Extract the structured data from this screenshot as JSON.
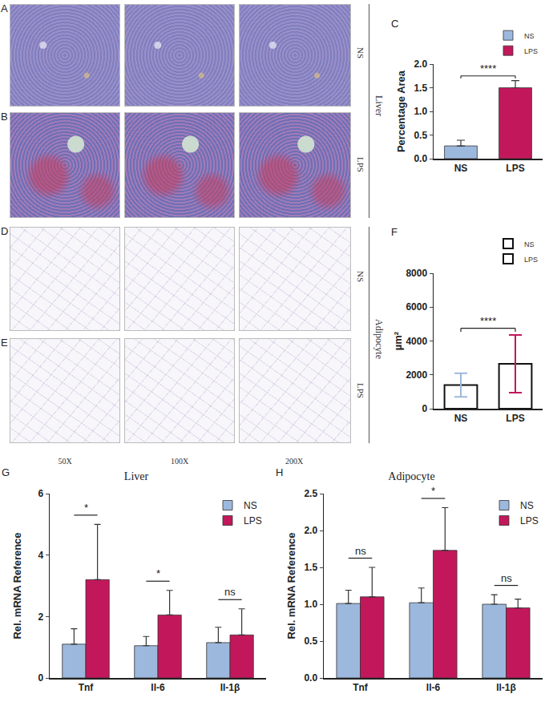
{
  "micrographs": {
    "tissues": [
      {
        "name": "Liver",
        "rows": [
          {
            "letter": "A",
            "group": "NS"
          },
          {
            "letter": "B",
            "group": "LPS"
          }
        ]
      },
      {
        "name": "Adipocyte",
        "rows": [
          {
            "letter": "D",
            "group": "NS"
          },
          {
            "letter": "E",
            "group": "LPS"
          }
        ]
      }
    ],
    "magnifications": [
      "50X",
      "100X",
      "200X"
    ]
  },
  "chart_data": [
    {
      "panel": "C",
      "type": "bar",
      "ylabel": "Percentage Area",
      "categories": [
        "NS",
        "LPS"
      ],
      "values": [
        0.27,
        1.5
      ],
      "errors": [
        0.12,
        0.15
      ],
      "colors": [
        "#9db8dd",
        "#c2185b"
      ],
      "ylim": [
        0,
        2.0
      ],
      "yticks": [
        {
          "value": 0,
          "label": "0.0"
        },
        0.5,
        {
          "value": 1,
          "label": "1.0"
        },
        1.5,
        {
          "value": 2,
          "label": "2.0"
        }
      ],
      "significance": [
        {
          "from": "NS",
          "to": "LPS",
          "label": "****"
        }
      ],
      "legend": "top right"
    },
    {
      "panel": "F",
      "type": "bar",
      "ylabel": "µm²",
      "categories": [
        "NS",
        "LPS"
      ],
      "values": [
        1400,
        2650
      ],
      "errors": [
        700,
        1700
      ],
      "colors": [
        "#9db8dd",
        "#c2185b"
      ],
      "ylim": [
        0,
        8000
      ],
      "yticks": [
        0,
        2000,
        4000,
        6000,
        8000
      ],
      "significance": [
        {
          "from": "NS",
          "to": "LPS",
          "label": "****"
        }
      ],
      "legend": "top right"
    },
    {
      "panel": "G",
      "type": "bar",
      "title": "Liver",
      "ylabel": "Rel. mRNA Reference",
      "categories": [
        "Tnf",
        "Il-6",
        "Il-1β"
      ],
      "series": [
        {
          "name": "NS",
          "color": "#9db8dd",
          "values": [
            1.1,
            1.05,
            1.15
          ],
          "errors": [
            0.5,
            0.3,
            0.5
          ]
        },
        {
          "name": "LPS",
          "color": "#c2185b",
          "values": [
            3.2,
            2.05,
            1.4
          ],
          "errors": [
            1.8,
            0.8,
            0.85
          ]
        }
      ],
      "ylim": [
        0,
        6
      ],
      "yticks": [
        0,
        2,
        4,
        6
      ],
      "significance": [
        {
          "category": "Tnf",
          "label": "*"
        },
        {
          "category": "Il-6",
          "label": "*"
        },
        {
          "category": "Il-1β",
          "label": "ns"
        }
      ],
      "legend": "top right"
    },
    {
      "panel": "H",
      "type": "bar",
      "title": "Adipocyte",
      "ylabel": "Rel. mRNA Reference",
      "categories": [
        "Tnf",
        "Il-6",
        "Il-1β"
      ],
      "series": [
        {
          "name": "NS",
          "color": "#9db8dd",
          "values": [
            1.01,
            1.02,
            1.0
          ],
          "errors": [
            0.18,
            0.2,
            0.13
          ]
        },
        {
          "name": "LPS",
          "color": "#c2185b",
          "values": [
            1.1,
            1.73,
            0.95
          ],
          "errors": [
            0.4,
            0.58,
            0.12
          ]
        }
      ],
      "ylim": [
        0,
        2.5
      ],
      "yticks": [
        {
          "value": 0,
          "label": "0.0"
        },
        0.5,
        {
          "value": 1,
          "label": "1.0"
        },
        1.5,
        {
          "value": 2,
          "label": "2.0"
        },
        2.5
      ],
      "significance": [
        {
          "category": "Tnf",
          "label": "ns"
        },
        {
          "category": "Il-6",
          "label": "*"
        },
        {
          "category": "Il-1β",
          "label": "ns"
        }
      ],
      "legend": "top right"
    }
  ]
}
